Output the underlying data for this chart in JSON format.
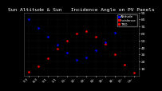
{
  "title": "Sun Altitude & Sun   Incidence Angle on PV Panels",
  "background_color": "#000000",
  "plot_bg": "#000000",
  "red_color": "#ff0000",
  "blue_color": "#0000ff",
  "grid_color": "#333333",
  "ylim": [
    0,
    90
  ],
  "yticks": [
    10,
    20,
    30,
    40,
    50,
    60,
    70,
    80,
    90
  ],
  "ytick_labels": [
    "10",
    "20",
    "30",
    "40",
    "50",
    "60",
    "70",
    "80",
    "90"
  ],
  "time_labels": [
    "7:3",
    "8:3",
    "9:1",
    "1:1",
    "11:",
    "12:",
    "13:",
    "14:",
    "15:",
    "16:",
    "17:",
    "Ca:"
  ],
  "altitude_x": [
    0,
    1,
    2,
    3,
    4,
    5,
    6,
    7,
    8,
    9,
    10,
    11
  ],
  "altitude_y": [
    5,
    13,
    25,
    38,
    50,
    60,
    63,
    56,
    45,
    30,
    16,
    4
  ],
  "incidence_x": [
    0,
    1,
    2,
    3,
    4,
    5,
    6,
    7,
    8,
    9,
    10,
    11
  ],
  "incidence_y": [
    80,
    68,
    55,
    44,
    33,
    23,
    26,
    36,
    48,
    61,
    74,
    84
  ],
  "title_fontsize": 4.5,
  "tick_fontsize": 3.2,
  "legend_entries": [
    {
      "label": "Altitude",
      "color": "#0000ff"
    },
    {
      "label": "Incidence",
      "color": "#ff0000"
    },
    {
      "label": "TRD",
      "color": "#ff0000"
    }
  ]
}
